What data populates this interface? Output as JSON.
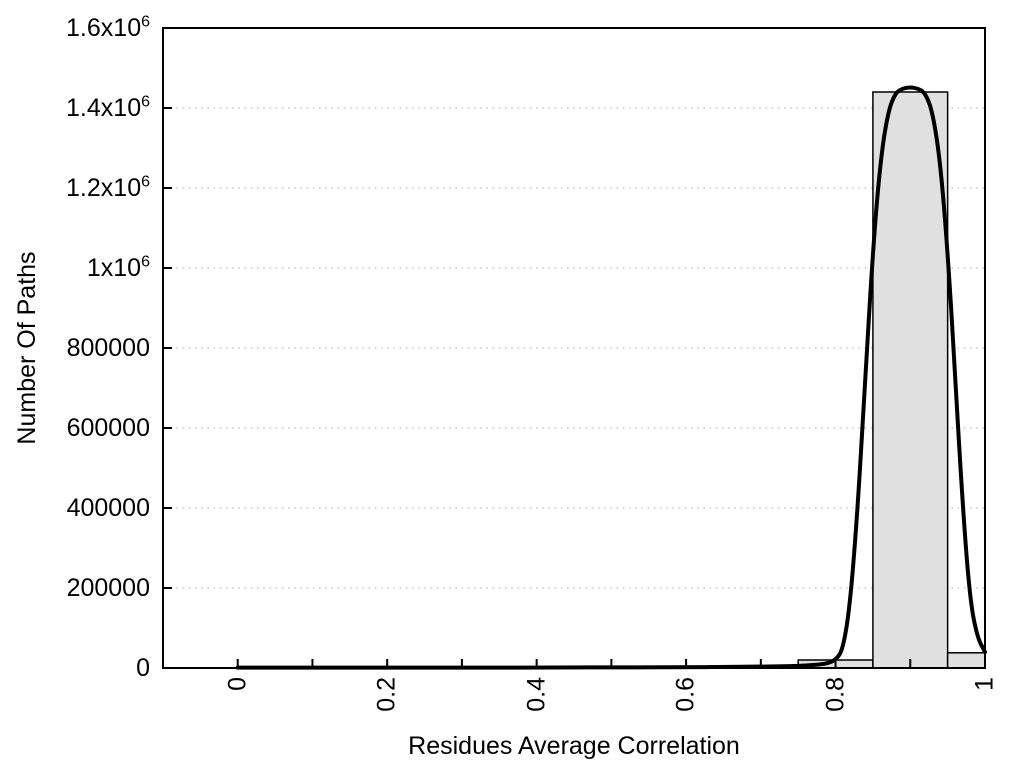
{
  "figure": {
    "background": "#ffffff"
  },
  "chart_data": {
    "type": "bar",
    "subtype": "histogram-with-fit-curve",
    "title": "",
    "xlabel": "Residues Average Correlation",
    "ylabel": "Number Of Paths",
    "xlim": [
      -0.1,
      1.0
    ],
    "ylim": [
      0,
      1600000
    ],
    "grid": "horizontal-dotted",
    "grid_color": "#c8c8c8",
    "x_tick_interval": 0.1,
    "x_tick_label_rotation_deg": -90,
    "x_tick_labels": [
      {
        "value": 0.0,
        "label": "0"
      },
      {
        "value": 0.2,
        "label": "0.2"
      },
      {
        "value": 0.4,
        "label": "0.4"
      },
      {
        "value": 0.6,
        "label": "0.6"
      },
      {
        "value": 0.8,
        "label": "0.8"
      },
      {
        "value": 1.0,
        "label": "1"
      }
    ],
    "y_ticks": [
      {
        "value": 0,
        "base": "0",
        "sup": ""
      },
      {
        "value": 200000,
        "base": "200000",
        "sup": ""
      },
      {
        "value": 400000,
        "base": "400000",
        "sup": ""
      },
      {
        "value": 600000,
        "base": "600000",
        "sup": ""
      },
      {
        "value": 800000,
        "base": "800000",
        "sup": ""
      },
      {
        "value": 1000000,
        "base": "1x10",
        "sup": "6"
      },
      {
        "value": 1200000,
        "base": "1.2x10",
        "sup": "6"
      },
      {
        "value": 1400000,
        "base": "1.4x10",
        "sup": "6"
      },
      {
        "value": 1600000,
        "base": "1.6x10",
        "sup": "6"
      }
    ],
    "bar_fill": "#e0e0e0",
    "bar_stroke": "#000000",
    "bars": [
      {
        "x_start": 0.75,
        "x_end": 0.85,
        "value": 20000
      },
      {
        "x_start": 0.85,
        "x_end": 0.95,
        "value": 1440000
      },
      {
        "x_start": 0.95,
        "x_end": 1.0,
        "value": 38000
      }
    ],
    "curve": {
      "name": "fit-curve",
      "color": "#000000",
      "peak_x": 0.9,
      "peak_value": 1452000,
      "points": [
        [
          0.0,
          1000
        ],
        [
          0.05,
          1000
        ],
        [
          0.1,
          1000
        ],
        [
          0.15,
          1000
        ],
        [
          0.2,
          1000
        ],
        [
          0.25,
          1000
        ],
        [
          0.3,
          1000
        ],
        [
          0.35,
          1000
        ],
        [
          0.4,
          1200
        ],
        [
          0.45,
          1300
        ],
        [
          0.5,
          1500
        ],
        [
          0.55,
          1700
        ],
        [
          0.6,
          2000
        ],
        [
          0.65,
          2500
        ],
        [
          0.7,
          3500
        ],
        [
          0.74,
          4500
        ],
        [
          0.76,
          6000
        ],
        [
          0.78,
          9000
        ],
        [
          0.79,
          12000
        ],
        [
          0.8,
          20000
        ],
        [
          0.81,
          46000
        ],
        [
          0.82,
          168000
        ],
        [
          0.83,
          410000
        ],
        [
          0.84,
          733000
        ],
        [
          0.85,
          1043000
        ],
        [
          0.86,
          1267000
        ],
        [
          0.87,
          1389000
        ],
        [
          0.88,
          1438000
        ],
        [
          0.89,
          1449000
        ],
        [
          0.9,
          1452000
        ],
        [
          0.91,
          1449000
        ],
        [
          0.92,
          1438000
        ],
        [
          0.93,
          1389000
        ],
        [
          0.94,
          1267000
        ],
        [
          0.95,
          1043000
        ],
        [
          0.96,
          733000
        ],
        [
          0.97,
          410000
        ],
        [
          0.98,
          168000
        ],
        [
          0.99,
          75000
        ],
        [
          1.0,
          40000
        ]
      ]
    },
    "axis_color": "#000000"
  }
}
